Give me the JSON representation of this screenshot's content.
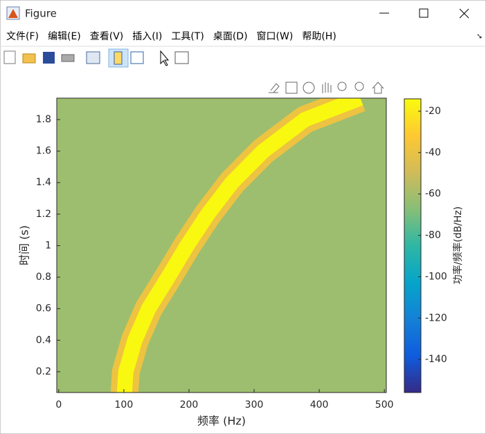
{
  "window": {
    "title": "Figure",
    "menu": [
      "文件(F)",
      "编辑(E)",
      "查看(V)",
      "插入(I)",
      "工具(T)",
      "桌面(D)",
      "窗口(W)",
      "帮助(H)"
    ]
  },
  "chart_data": {
    "type": "spectrogram",
    "x_label": "频率 (Hz)",
    "y_label": "时间 (s)",
    "colorbar_label": "功率/频率(dB/Hz)",
    "xlim": [
      -3,
      503
    ],
    "xticks": [
      0,
      100,
      200,
      300,
      400,
      500
    ],
    "ylim": [
      0.068,
      1.936
    ],
    "yticks": [
      0.2,
      0.4,
      0.6,
      0.8,
      1,
      1.2,
      1.4,
      1.6,
      1.8
    ],
    "clim": [
      -156,
      -14
    ],
    "cticks": [
      -20,
      -40,
      -60,
      -80,
      -100,
      -120,
      -140
    ],
    "background_level": -62,
    "ridge_level": -15,
    "x": [
      101,
      103,
      117,
      138,
      168,
      197,
      229,
      266,
      314,
      378,
      463
    ],
    "values": [
      0.068,
      0.2,
      0.4,
      0.6,
      0.8,
      1,
      1.2,
      1.4,
      1.6,
      1.8,
      1.936
    ]
  }
}
